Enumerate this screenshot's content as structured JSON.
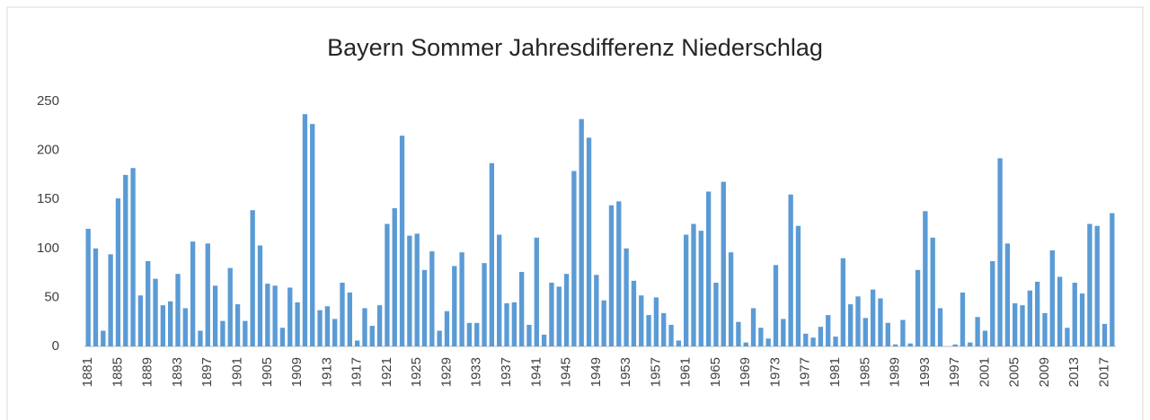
{
  "chart_data": {
    "type": "bar",
    "title": "Bayern Sommer Jahresdifferenz Niederschlag",
    "categories": [
      "1881",
      null,
      null,
      null,
      "1885",
      null,
      null,
      null,
      "1889",
      null,
      null,
      null,
      "1893",
      null,
      null,
      null,
      "1897",
      null,
      null,
      null,
      "1901",
      null,
      null,
      null,
      "1905",
      null,
      null,
      null,
      "1909",
      null,
      null,
      null,
      "1913",
      null,
      null,
      null,
      "1917",
      null,
      null,
      null,
      "1921",
      null,
      null,
      null,
      "1925",
      null,
      null,
      null,
      "1929",
      null,
      null,
      null,
      "1933",
      null,
      null,
      null,
      "1937",
      null,
      null,
      null,
      "1941",
      null,
      null,
      null,
      "1945",
      null,
      null,
      null,
      "1949",
      null,
      null,
      null,
      "1953",
      null,
      null,
      null,
      "1957",
      null,
      null,
      null,
      "1961",
      null,
      null,
      null,
      "1965",
      null,
      null,
      null,
      "1969",
      null,
      null,
      null,
      "1973",
      null,
      null,
      null,
      "1977",
      null,
      null,
      null,
      "1981",
      null,
      null,
      null,
      "1985",
      null,
      null,
      null,
      "1989",
      null,
      null,
      null,
      "1993",
      null,
      null,
      null,
      "1997",
      null,
      null,
      null,
      "2001",
      null,
      null,
      null,
      "2005",
      null,
      null,
      null,
      "2009",
      null,
      null,
      null,
      "2013",
      null,
      null,
      null,
      "2017",
      null
    ],
    "values": [
      120,
      100,
      16,
      94,
      151,
      175,
      182,
      52,
      87,
      69,
      42,
      46,
      74,
      39,
      107,
      16,
      105,
      62,
      26,
      80,
      43,
      26,
      139,
      103,
      64,
      62,
      19,
      60,
      45,
      237,
      227,
      37,
      41,
      28,
      65,
      55,
      6,
      39,
      21,
      42,
      125,
      141,
      215,
      113,
      115,
      78,
      97,
      16,
      36,
      82,
      96,
      24,
      24,
      85,
      187,
      114,
      44,
      45,
      76,
      22,
      111,
      12,
      65,
      61,
      74,
      179,
      232,
      213,
      73,
      47,
      144,
      148,
      100,
      67,
      52,
      32,
      50,
      34,
      22,
      6,
      114,
      125,
      118,
      158,
      65,
      168,
      96,
      25,
      4,
      39,
      19,
      8,
      83,
      28,
      155,
      123,
      13,
      9,
      20,
      32,
      10,
      90,
      43,
      51,
      29,
      58,
      49,
      24,
      2,
      27,
      3,
      78,
      138,
      111,
      39,
      0,
      2,
      55,
      4,
      30,
      16,
      87,
      192,
      105,
      44,
      42,
      57,
      66,
      34,
      98,
      71,
      19,
      65,
      54,
      125,
      123,
      23,
      136
    ],
    "color": "#5b9bd5",
    "ylim": [
      0,
      250
    ],
    "yticks": [
      0,
      50,
      100,
      150,
      200,
      250
    ],
    "grid": false
  }
}
